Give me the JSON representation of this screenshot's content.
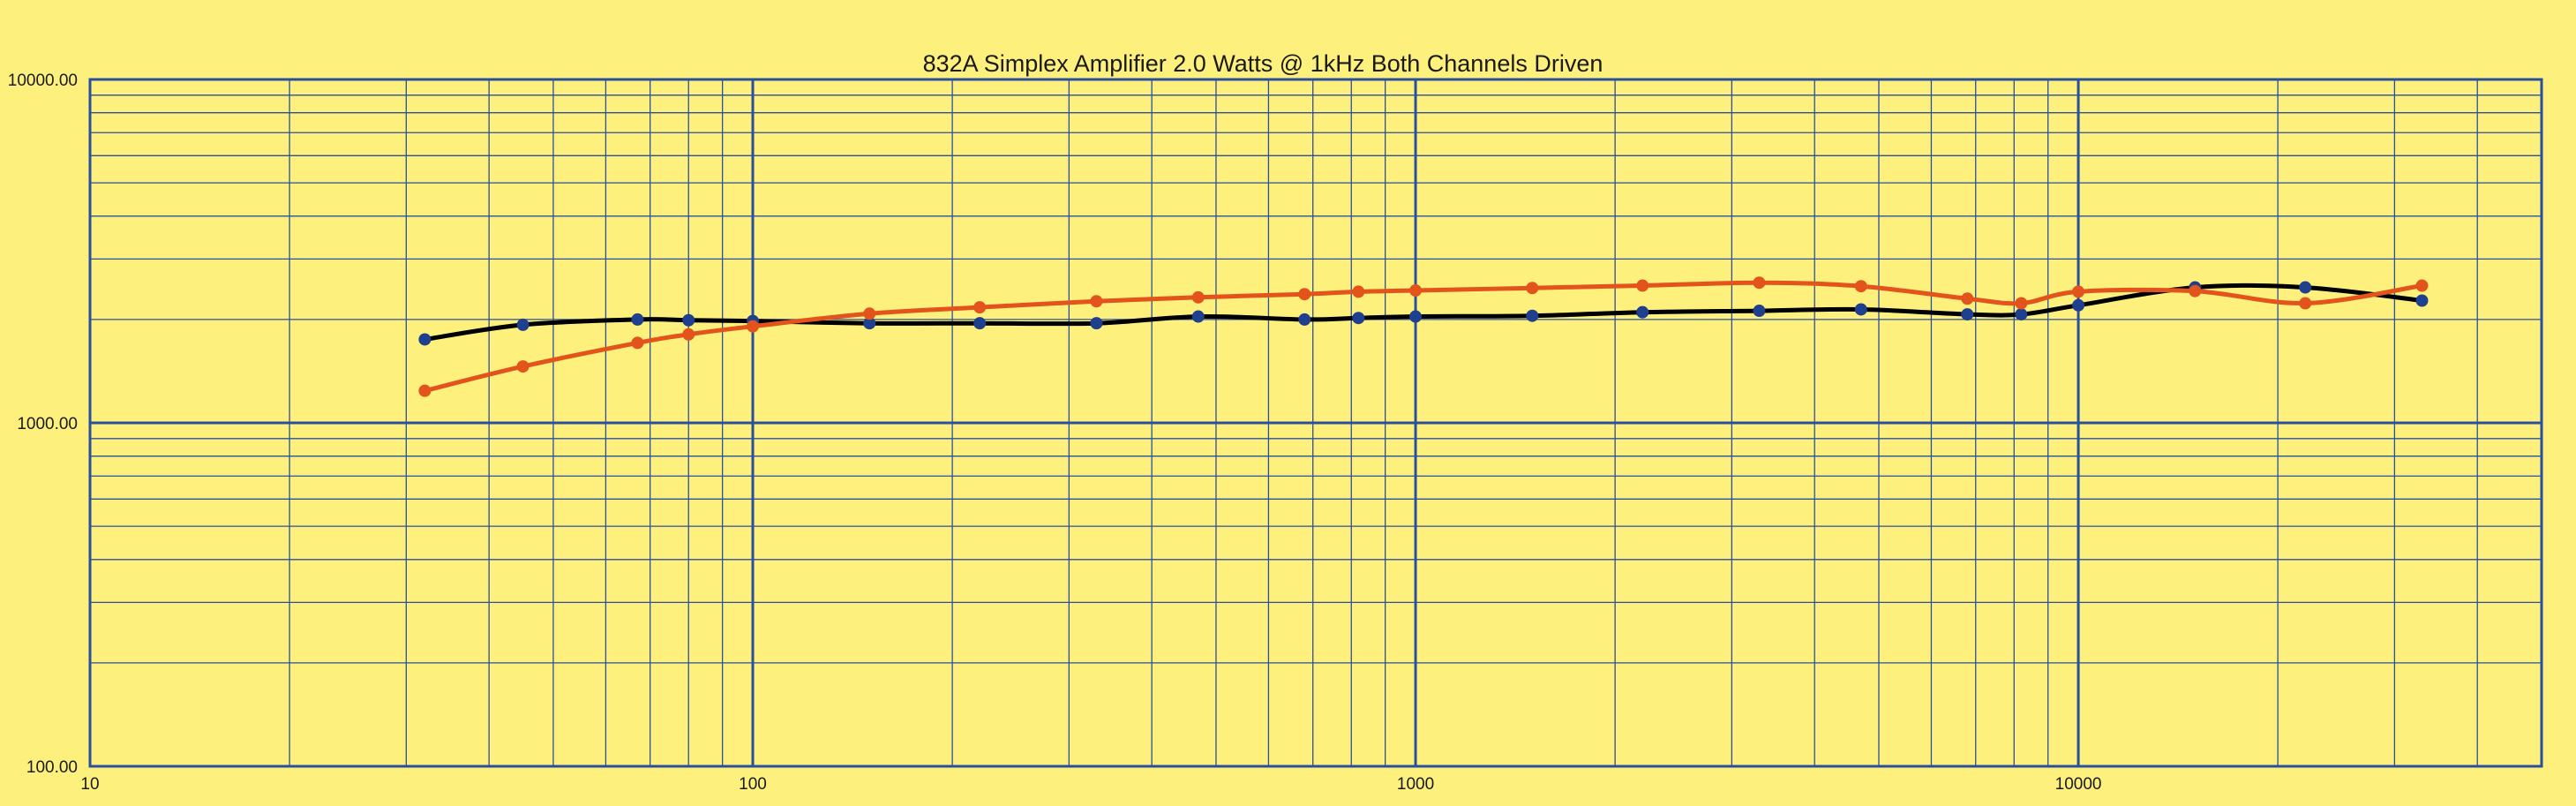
{
  "chart_data": {
    "type": "line",
    "title": "832A Simplex Amplifier 2.0 Watts @ 1kHz Both Channels Driven",
    "xlabel": "",
    "ylabel": "",
    "x_scale": "log",
    "y_scale": "log",
    "xlim": [
      10,
      50000
    ],
    "ylim": [
      100,
      10000
    ],
    "x_ticks": [
      "10",
      "100",
      "1000",
      "10000"
    ],
    "y_ticks": [
      "100.00",
      "1000.00",
      "10000.00"
    ],
    "grid": true,
    "legend": "none",
    "series": [
      {
        "color": "#000000",
        "marker_color": "#1f3f8f",
        "points": [
          [
            32,
            1750
          ],
          [
            45,
            1930
          ],
          [
            67,
            2000
          ],
          [
            80,
            1990
          ],
          [
            100,
            1980
          ],
          [
            150,
            1950
          ],
          [
            220,
            1950
          ],
          [
            330,
            1950
          ],
          [
            470,
            2040
          ],
          [
            680,
            2000
          ],
          [
            820,
            2020
          ],
          [
            1000,
            2040
          ],
          [
            1500,
            2050
          ],
          [
            2200,
            2100
          ],
          [
            3300,
            2120
          ],
          [
            4700,
            2140
          ],
          [
            6800,
            2070
          ],
          [
            8200,
            2070
          ],
          [
            10000,
            2200
          ],
          [
            15000,
            2480
          ],
          [
            22000,
            2480
          ],
          [
            33000,
            2270
          ]
        ]
      },
      {
        "color": "#e2541c",
        "marker_color": "#e2541c",
        "points": [
          [
            32,
            1240
          ],
          [
            45,
            1460
          ],
          [
            67,
            1710
          ],
          [
            80,
            1810
          ],
          [
            100,
            1910
          ],
          [
            150,
            2080
          ],
          [
            220,
            2170
          ],
          [
            330,
            2260
          ],
          [
            470,
            2320
          ],
          [
            680,
            2370
          ],
          [
            820,
            2410
          ],
          [
            1000,
            2430
          ],
          [
            1500,
            2470
          ],
          [
            2200,
            2510
          ],
          [
            3300,
            2560
          ],
          [
            4700,
            2500
          ],
          [
            6800,
            2300
          ],
          [
            8200,
            2230
          ],
          [
            10000,
            2410
          ],
          [
            15000,
            2420
          ],
          [
            22000,
            2230
          ],
          [
            33000,
            2510
          ]
        ]
      }
    ]
  }
}
